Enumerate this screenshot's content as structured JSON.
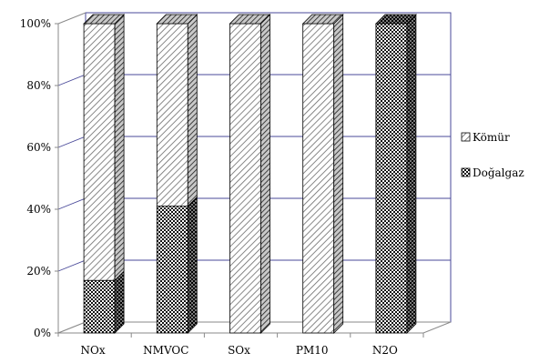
{
  "chart_data": {
    "type": "bar",
    "stacked": true,
    "percent": true,
    "three_d": true,
    "categories": [
      "NOx",
      "NMVOC",
      "SOx",
      "PM10",
      "N2O"
    ],
    "series": [
      {
        "name": "Doğalgaz",
        "values": [
          17,
          41,
          0,
          0,
          100
        ],
        "pattern": "checker-dark"
      },
      {
        "name": "Kömür",
        "values": [
          83,
          59,
          100,
          100,
          0
        ],
        "pattern": "diagonal-light"
      }
    ],
    "y_ticks": [
      "0%",
      "20%",
      "40%",
      "60%",
      "80%",
      "100%"
    ],
    "ylim": [
      0,
      100
    ],
    "grid": true,
    "legend_position": "right",
    "legend_order": [
      "Kömür",
      "Doğalgaz"
    ],
    "colors": {
      "plot_border": "#4a4a9a",
      "grid": "#4a4a9a",
      "ink": "#000000"
    }
  }
}
